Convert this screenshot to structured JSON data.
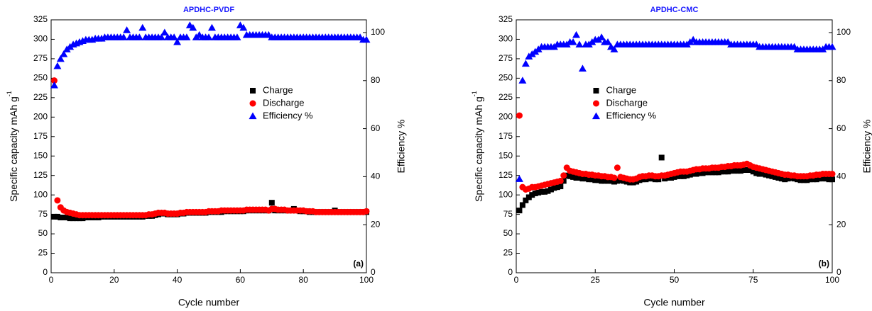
{
  "chart_data": [
    {
      "type": "scatter",
      "title": "APDHC-PVDF",
      "xlabel": "Cycle number",
      "ylabel": "Specific capacity mAh g",
      "ylabel_superscript": "-1",
      "y2label": "Efficiency %",
      "annotation": "(a)",
      "legend_position": "center right",
      "xlim": [
        0,
        100
      ],
      "xticks": [
        0,
        20,
        40,
        60,
        80,
        100
      ],
      "ylim": [
        0,
        325
      ],
      "yticks": [
        0,
        25,
        50,
        75,
        100,
        125,
        150,
        175,
        200,
        225,
        250,
        275,
        300,
        325
      ],
      "y2lim": [
        0,
        105.3
      ],
      "y2ticks": [
        0,
        20,
        40,
        60,
        80,
        100
      ],
      "x": [
        1,
        2,
        3,
        4,
        5,
        6,
        7,
        8,
        9,
        10,
        11,
        12,
        13,
        14,
        15,
        16,
        17,
        18,
        19,
        20,
        21,
        22,
        23,
        24,
        25,
        26,
        27,
        28,
        29,
        30,
        31,
        32,
        33,
        34,
        35,
        36,
        37,
        38,
        39,
        40,
        41,
        42,
        43,
        44,
        45,
        46,
        47,
        48,
        49,
        50,
        51,
        52,
        53,
        54,
        55,
        56,
        57,
        58,
        59,
        60,
        61,
        62,
        63,
        64,
        65,
        66,
        67,
        68,
        69,
        70,
        71,
        72,
        73,
        74,
        75,
        76,
        77,
        78,
        79,
        80,
        81,
        82,
        83,
        84,
        85,
        86,
        87,
        88,
        89,
        90,
        91,
        92,
        93,
        94,
        95,
        96,
        97,
        98,
        99,
        100
      ],
      "series": [
        {
          "name": "Charge",
          "color": "#000000",
          "marker": "square",
          "values": [
            72,
            72,
            71,
            71,
            71,
            70,
            70,
            70,
            70,
            70,
            71,
            71,
            71,
            71,
            71,
            72,
            72,
            72,
            72,
            72,
            72,
            72,
            72,
            72,
            72,
            72,
            72,
            72,
            72,
            73,
            73,
            73,
            74,
            75,
            76,
            76,
            75,
            75,
            75,
            75,
            76,
            76,
            77,
            77,
            77,
            77,
            77,
            77,
            77,
            78,
            78,
            78,
            78,
            78,
            79,
            79,
            79,
            79,
            79,
            79,
            79,
            80,
            80,
            80,
            80,
            80,
            80,
            80,
            80,
            90,
            80,
            80,
            80,
            80,
            80,
            80,
            82,
            80,
            79,
            79,
            79,
            78,
            78,
            78,
            78,
            78,
            78,
            78,
            78,
            80,
            78,
            78,
            78,
            78,
            78,
            78,
            78,
            78,
            78,
            78
          ]
        },
        {
          "name": "Discharge",
          "color": "#ff0000",
          "marker": "circle",
          "values": [
            247,
            93,
            84,
            80,
            78,
            77,
            76,
            75,
            74,
            74,
            74,
            74,
            74,
            74,
            74,
            74,
            74,
            74,
            74,
            74,
            74,
            74,
            74,
            74,
            74,
            74,
            74,
            74,
            74,
            74,
            75,
            75,
            76,
            77,
            77,
            77,
            76,
            76,
            76,
            76,
            77,
            77,
            78,
            78,
            78,
            78,
            78,
            78,
            78,
            79,
            79,
            79,
            79,
            80,
            80,
            80,
            80,
            80,
            80,
            80,
            80,
            81,
            81,
            81,
            81,
            81,
            81,
            81,
            80,
            82,
            82,
            81,
            81,
            81,
            80,
            80,
            80,
            80,
            80,
            80,
            79,
            79,
            79,
            78,
            78,
            78,
            78,
            78,
            78,
            78,
            78,
            78,
            78,
            78,
            78,
            78,
            78,
            78,
            78,
            79
          ]
        },
        {
          "name": "Efficiency %",
          "color": "#0000ff",
          "marker": "triangle",
          "axis": "y2",
          "values": [
            78,
            86,
            89,
            91,
            93,
            94,
            95,
            95.5,
            96,
            96.5,
            97,
            97,
            97,
            97.5,
            97.5,
            97.5,
            98,
            98,
            98,
            98,
            98,
            98,
            98,
            101,
            98,
            98,
            98,
            98,
            102,
            98,
            98,
            98,
            98,
            98,
            98,
            100,
            98,
            98,
            98,
            96,
            98,
            98,
            98,
            103,
            102,
            98,
            99,
            98,
            98,
            98,
            102,
            98,
            98,
            98,
            98,
            98,
            98,
            98,
            98,
            103,
            102,
            99,
            99,
            99,
            99,
            99,
            99,
            99,
            99,
            98,
            98,
            98,
            98,
            98,
            98,
            98,
            98,
            98,
            98,
            98,
            98,
            98,
            98,
            98,
            98,
            98,
            98,
            98,
            98,
            98,
            98,
            98,
            98,
            98,
            98,
            98,
            98,
            98,
            97,
            97
          ]
        }
      ]
    },
    {
      "type": "scatter",
      "title": "APDHC-CMC",
      "xlabel": "Cycle number",
      "ylabel": "Specific capacity mAh g",
      "ylabel_superscript": "-1",
      "y2label": "Efficiency %",
      "annotation": "(b)",
      "legend_position": "center",
      "xlim": [
        0,
        100
      ],
      "xticks": [
        0,
        25,
        50,
        75,
        100
      ],
      "ylim": [
        0,
        325
      ],
      "yticks": [
        0,
        25,
        50,
        75,
        100,
        125,
        150,
        175,
        200,
        225,
        250,
        275,
        300,
        325
      ],
      "y2lim": [
        0,
        105.3
      ],
      "y2ticks": [
        0,
        20,
        40,
        60,
        80,
        100
      ],
      "x": [
        1,
        2,
        3,
        4,
        5,
        6,
        7,
        8,
        9,
        10,
        11,
        12,
        13,
        14,
        15,
        16,
        17,
        18,
        19,
        20,
        21,
        22,
        23,
        24,
        25,
        26,
        27,
        28,
        29,
        30,
        31,
        32,
        33,
        34,
        35,
        36,
        37,
        38,
        39,
        40,
        41,
        42,
        43,
        44,
        45,
        46,
        47,
        48,
        49,
        50,
        51,
        52,
        53,
        54,
        55,
        56,
        57,
        58,
        59,
        60,
        61,
        62,
        63,
        64,
        65,
        66,
        67,
        68,
        69,
        70,
        71,
        72,
        73,
        74,
        75,
        76,
        77,
        78,
        79,
        80,
        81,
        82,
        83,
        84,
        85,
        86,
        87,
        88,
        89,
        90,
        91,
        92,
        93,
        94,
        95,
        96,
        97,
        98,
        99,
        100
      ],
      "series": [
        {
          "name": "Charge",
          "color": "#000000",
          "marker": "square",
          "values": [
            80,
            87,
            93,
            97,
            100,
            102,
            103,
            104,
            104,
            105,
            107,
            109,
            110,
            111,
            118,
            125,
            124,
            123,
            122,
            122,
            121,
            121,
            120,
            120,
            119,
            119,
            118,
            118,
            118,
            118,
            117,
            118,
            119,
            118,
            117,
            116,
            116,
            117,
            119,
            120,
            120,
            121,
            121,
            120,
            120,
            148,
            121,
            122,
            122,
            123,
            124,
            124,
            124,
            125,
            126,
            127,
            127,
            128,
            128,
            129,
            129,
            129,
            129,
            129,
            130,
            130,
            130,
            131,
            131,
            131,
            131,
            132,
            132,
            132,
            130,
            128,
            127,
            127,
            126,
            125,
            124,
            123,
            122,
            121,
            120,
            121,
            122,
            121,
            120,
            119,
            119,
            119,
            120,
            120,
            120,
            121,
            121,
            121,
            120,
            120
          ]
        },
        {
          "name": "Discharge",
          "color": "#ff0000",
          "marker": "circle",
          "values": [
            202,
            110,
            107,
            108,
            110,
            110,
            111,
            112,
            113,
            114,
            115,
            116,
            117,
            118,
            125,
            135,
            131,
            130,
            129,
            128,
            127,
            127,
            126,
            126,
            125,
            125,
            124,
            124,
            123,
            123,
            122,
            135,
            123,
            122,
            121,
            120,
            120,
            121,
            123,
            124,
            124,
            125,
            125,
            124,
            124,
            125,
            125,
            126,
            127,
            128,
            129,
            130,
            130,
            130,
            131,
            132,
            133,
            133,
            134,
            134,
            134,
            135,
            135,
            135,
            136,
            136,
            137,
            137,
            138,
            138,
            138,
            139,
            140,
            138,
            136,
            135,
            134,
            133,
            132,
            131,
            130,
            129,
            128,
            127,
            126,
            126,
            125,
            125,
            124,
            124,
            124,
            124,
            125,
            125,
            126,
            126,
            127,
            127,
            127,
            127
          ]
        },
        {
          "name": "Efficiency %",
          "color": "#0000ff",
          "marker": "triangle",
          "axis": "y2",
          "values": [
            39,
            80,
            87,
            90,
            91,
            92,
            93,
            94,
            94,
            94,
            94,
            94,
            95,
            95,
            95,
            95,
            96,
            96,
            99,
            95,
            85,
            95,
            95,
            96,
            97,
            97,
            98,
            96,
            96,
            94,
            93,
            95,
            95,
            95,
            95,
            95,
            95,
            95,
            95,
            95,
            95,
            95,
            95,
            95,
            95,
            95,
            95,
            95,
            95,
            95,
            95,
            95,
            95,
            95,
            96,
            97,
            96,
            96,
            96,
            96,
            96,
            96,
            96,
            96,
            96,
            96,
            96,
            95,
            95,
            95,
            95,
            95,
            95,
            95,
            95,
            95,
            94,
            94,
            94,
            94,
            94,
            94,
            94,
            94,
            94,
            94,
            94,
            94,
            93,
            93,
            93,
            93,
            93,
            93,
            93,
            93,
            93,
            94,
            94,
            94
          ]
        }
      ]
    }
  ]
}
